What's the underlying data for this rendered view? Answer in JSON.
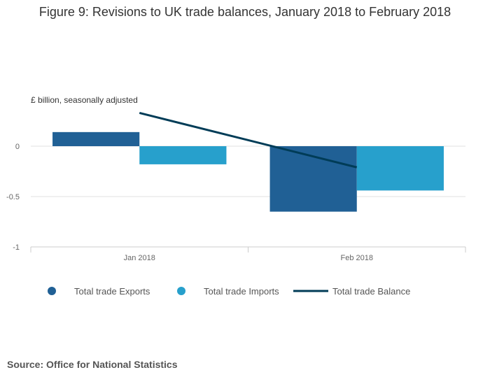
{
  "title": "Figure 9: Revisions to UK trade balances, January 2018 to February 2018",
  "source": "Source: Office for National Statistics",
  "chart_data": {
    "type": "bar",
    "categories": [
      "Jan 2018",
      "Feb 2018"
    ],
    "series": [
      {
        "name": "Total trade Exports",
        "kind": "bar",
        "color": "#206095",
        "values": [
          0.14,
          -0.65
        ]
      },
      {
        "name": "Total trade Imports",
        "kind": "bar",
        "color": "#27a0cc",
        "values": [
          -0.18,
          -0.44
        ]
      },
      {
        "name": "Total trade Balance",
        "kind": "line",
        "color": "#003c57",
        "values": [
          0.33,
          -0.21
        ]
      }
    ],
    "ylabel": "£ billion, seasonally adjusted",
    "ylim": [
      -1,
      0.5
    ],
    "yticks": [
      0,
      -0.5,
      -1
    ],
    "ytick_labels": [
      "0",
      "-0.5",
      "-1"
    ],
    "grid": true,
    "legend": "bottom"
  }
}
